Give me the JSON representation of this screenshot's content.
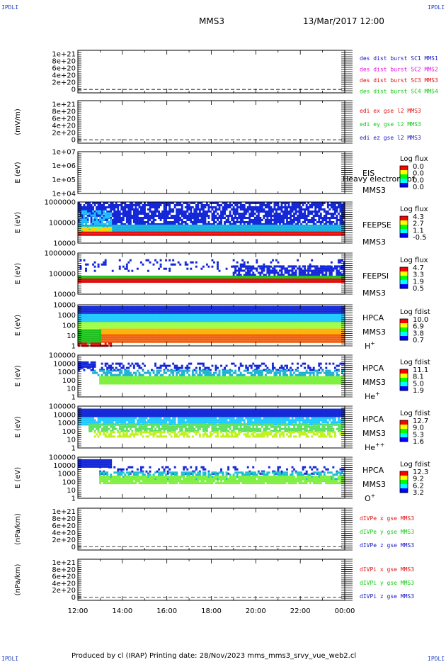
{
  "corners": {
    "tl": "IPDLI",
    "tr": "IPDLI",
    "bl": "IPDLI",
    "br": "IPDLI"
  },
  "header": {
    "mission": "MMS3",
    "date": "13/Mar/2017 12:00"
  },
  "footer": {
    "text": "Produced by cl (IRAP)   Printing date: 28/Nov/2023   mms_mms3_srvy_vue_web2.cl"
  },
  "time_axis": {
    "ticks": [
      "12:00",
      "14:00",
      "16:00",
      "18:00",
      "20:00",
      "22:00",
      "00:00"
    ]
  },
  "colors": {
    "blue": "#1414c8",
    "magenta": "#e010e0",
    "red": "#e01010",
    "green": "#10c810"
  },
  "chart_data": [
    {
      "type": "line",
      "ylabel": "",
      "yticks": [
        "1e+21",
        "8e+20",
        "6e+20",
        "4e+20",
        "2e+20",
        "0"
      ],
      "legend": [
        {
          "text": "des dist burst SC1 MMS1",
          "color": "#1414c8"
        },
        {
          "text": "des dist burst SC2 MMS2",
          "color": "#e010e0"
        },
        {
          "text": "des dist burst SC3 MMS3",
          "color": "#e01010"
        },
        {
          "text": "des dist burst SC4 MMS4",
          "color": "#10c810"
        }
      ]
    },
    {
      "type": "line",
      "ylabel": "(mV/m)",
      "yticks": [
        "1e+21",
        "8e+20",
        "6e+20",
        "4e+20",
        "2e+20",
        "0"
      ],
      "legend": [
        {
          "text": "edi ex gse l2 MMS3",
          "color": "#e01010"
        },
        {
          "text": "edi ey gse l2 MMS3",
          "color": "#10c810"
        },
        {
          "text": "edi ez gse l2 MMS3",
          "color": "#1414c8"
        }
      ]
    },
    {
      "type": "heatmap",
      "ylabel": "E (eV)",
      "yticks": [
        "1e+07",
        "1e+06",
        "1e+05",
        "1e+04"
      ],
      "right": [
        "EIS",
        "MMS3"
      ],
      "overlay": "Heavy electron tof",
      "cbar_title": "Log flux",
      "cbar": [
        "0.0",
        "0.0",
        "0.0",
        "0.0"
      ]
    },
    {
      "type": "heatmap",
      "ylabel": "E (eV)",
      "yticks": [
        "1000000",
        "100000",
        "10000"
      ],
      "right": [
        "FEEPSE",
        "MMS3"
      ],
      "cbar_title": "Log flux",
      "cbar": [
        "4.3",
        "2.7",
        "1.1",
        "-0.5"
      ]
    },
    {
      "type": "heatmap",
      "ylabel": "E (eV)",
      "yticks": [
        "1000000",
        "100000",
        "10000"
      ],
      "right": [
        "FEEPSI",
        "MMS3"
      ],
      "cbar_title": "Log flux",
      "cbar": [
        "4.7",
        "3.3",
        "1.9",
        "0.5"
      ]
    },
    {
      "type": "heatmap",
      "ylabel": "E (eV)",
      "yticks": [
        "10000",
        "1000",
        "100",
        "10",
        "1"
      ],
      "right": [
        "HPCA",
        "MMS3"
      ],
      "species": "H",
      "sup": "+",
      "cbar_title": "Log fdist",
      "cbar": [
        "10.0",
        "6.9",
        "3.8",
        "0.7"
      ]
    },
    {
      "type": "heatmap",
      "ylabel": "E (eV)",
      "yticks": [
        "100000",
        "10000",
        "1000",
        "100",
        "10",
        "1"
      ],
      "right": [
        "HPCA",
        "MMS3"
      ],
      "species": "He",
      "sup": "+",
      "cbar_title": "Log fdist",
      "cbar": [
        "11.1",
        "8.1",
        "5.0",
        "1.9"
      ]
    },
    {
      "type": "heatmap",
      "ylabel": "E (eV)",
      "yticks": [
        "100000",
        "10000",
        "1000",
        "100",
        "10",
        "1"
      ],
      "right": [
        "HPCA",
        "MMS3"
      ],
      "species": "He",
      "sup": "++",
      "cbar_title": "Log fdist",
      "cbar": [
        "12.7",
        "9.0",
        "5.3",
        "1.6"
      ]
    },
    {
      "type": "heatmap",
      "ylabel": "E (eV)",
      "yticks": [
        "100000",
        "10000",
        "1000",
        "100",
        "10",
        "1"
      ],
      "right": [
        "HPCA",
        "MMS3"
      ],
      "species": "O",
      "sup": "+",
      "cbar_title": "Log fdist",
      "cbar": [
        "12.3",
        "9.2",
        "6.2",
        "3.2"
      ]
    },
    {
      "type": "line",
      "ylabel": "(nPa/km)",
      "yticks": [
        "1e+21",
        "8e+20",
        "6e+20",
        "4e+20",
        "2e+20",
        "0"
      ],
      "legend": [
        {
          "text": "dIVPe x gse MMS3",
          "color": "#e01010"
        },
        {
          "text": "dIVPe y gse MMS3",
          "color": "#10c810"
        },
        {
          "text": "dIVPe z gse MMS3",
          "color": "#1414c8"
        }
      ]
    },
    {
      "type": "line",
      "ylabel": "(nPa/km)",
      "yticks": [
        "1e+21",
        "8e+20",
        "6e+20",
        "4e+20",
        "2e+20",
        "0"
      ],
      "legend": [
        {
          "text": "dIVPi x gse MMS3",
          "color": "#e01010"
        },
        {
          "text": "dIVPi y gse MMS3",
          "color": "#10c810"
        },
        {
          "text": "dIVPi z gse MMS3",
          "color": "#1414c8"
        }
      ]
    }
  ]
}
